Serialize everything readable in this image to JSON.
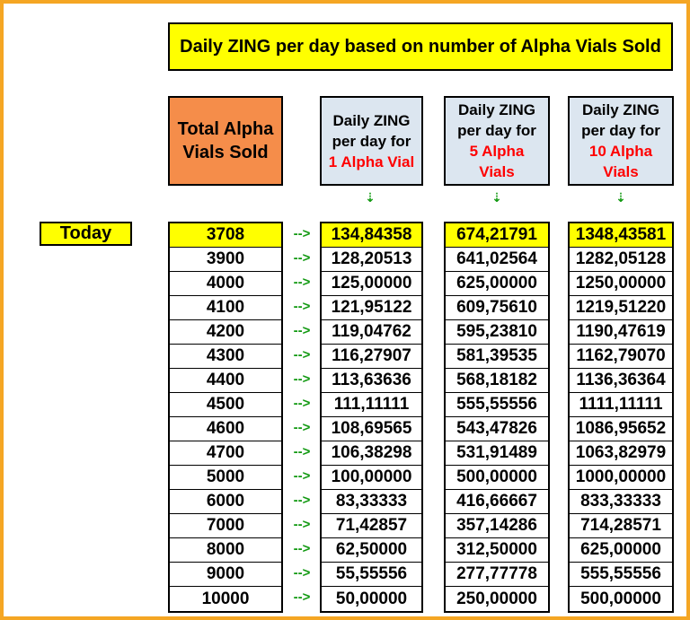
{
  "title": "Daily ZING per day based on number of Alpha Vials Sold",
  "headers": {
    "total": [
      "Total Alpha",
      "Vials Sold"
    ],
    "col1": {
      "line1": "Daily ZING",
      "line2": "per day for",
      "red": [
        "1 Alpha Vial"
      ]
    },
    "col5": {
      "line1": "Daily ZING",
      "line2": "per day for",
      "red": [
        "5 Alpha",
        "Vials"
      ]
    },
    "col10": {
      "line1": "Daily ZING",
      "line2": "per day for",
      "red": [
        "10 Alpha",
        "Vials"
      ]
    }
  },
  "today_label": "Today",
  "arrow_symbol": "-->",
  "down_arrow_symbol": "⇣",
  "colors": {
    "border": "#f5a623",
    "highlight": "#ffff00",
    "orange_header": "#f58d4a",
    "blue_header": "#dce6f0",
    "accent_red": "#ff0000",
    "arrow_green": "#119911"
  },
  "rows": [
    {
      "sold": "3708",
      "v1": "134,84358",
      "v5": "674,21791",
      "v10": "1348,43581"
    },
    {
      "sold": "3900",
      "v1": "128,20513",
      "v5": "641,02564",
      "v10": "1282,05128"
    },
    {
      "sold": "4000",
      "v1": "125,00000",
      "v5": "625,00000",
      "v10": "1250,00000"
    },
    {
      "sold": "4100",
      "v1": "121,95122",
      "v5": "609,75610",
      "v10": "1219,51220"
    },
    {
      "sold": "4200",
      "v1": "119,04762",
      "v5": "595,23810",
      "v10": "1190,47619"
    },
    {
      "sold": "4300",
      "v1": "116,27907",
      "v5": "581,39535",
      "v10": "1162,79070"
    },
    {
      "sold": "4400",
      "v1": "113,63636",
      "v5": "568,18182",
      "v10": "1136,36364"
    },
    {
      "sold": "4500",
      "v1": "111,11111",
      "v5": "555,55556",
      "v10": "1111,11111"
    },
    {
      "sold": "4600",
      "v1": "108,69565",
      "v5": "543,47826",
      "v10": "1086,95652"
    },
    {
      "sold": "4700",
      "v1": "106,38298",
      "v5": "531,91489",
      "v10": "1063,82979"
    },
    {
      "sold": "5000",
      "v1": "100,00000",
      "v5": "500,00000",
      "v10": "1000,00000"
    },
    {
      "sold": "6000",
      "v1": "83,33333",
      "v5": "416,66667",
      "v10": "833,33333"
    },
    {
      "sold": "7000",
      "v1": "71,42857",
      "v5": "357,14286",
      "v10": "714,28571"
    },
    {
      "sold": "8000",
      "v1": "62,50000",
      "v5": "312,50000",
      "v10": "625,00000"
    },
    {
      "sold": "9000",
      "v1": "55,55556",
      "v5": "277,77778",
      "v10": "555,55556"
    },
    {
      "sold": "10000",
      "v1": "50,00000",
      "v5": "250,00000",
      "v10": "500,00000"
    }
  ]
}
